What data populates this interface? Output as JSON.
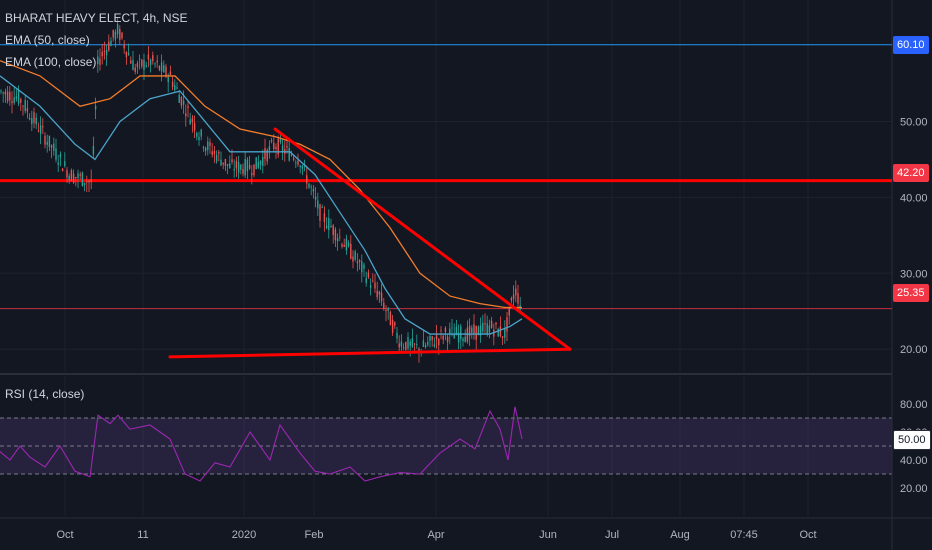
{
  "legend": {
    "title": "BHARAT HEAVY ELECT, 4h, NSE",
    "ema1": "EMA (50, close)",
    "ema2": "EMA (100, close)",
    "rsi": "RSI (14, close)"
  },
  "price_tags": {
    "resistance_top": "60.10",
    "resistance_mid": "42.20",
    "last": "25.35",
    "rsi_mid": "50.00"
  },
  "colors": {
    "background": "#131722",
    "grid": "#1e222d",
    "red_line": "#ff0000",
    "ema50": "#4aa3c9",
    "ema100": "#f57c2a",
    "blue_tag": "#2962ff",
    "red_tag": "#f23645",
    "rsi_line": "#9c27b0",
    "rsi_band": "#7e57c2"
  },
  "chart_data": {
    "type": "candlestick",
    "symbol": "BHARAT HEAVY ELECT",
    "interval": "4h",
    "exchange": "NSE",
    "x_ticks": [
      "Oct",
      "11",
      "2020",
      "Feb",
      "Apr",
      "Jun",
      "Jul",
      "Aug",
      "07:45",
      "Oct"
    ],
    "y_ticks": [
      "50.00",
      "40.00",
      "30.00",
      "20.00"
    ],
    "y_range": [
      17,
      66
    ],
    "horizontal_levels": [
      60.1,
      42.2
    ],
    "last_price": 25.35,
    "price_path": [
      [
        0,
        54
      ],
      [
        20,
        53
      ],
      [
        45,
        48
      ],
      [
        70,
        43
      ],
      [
        92,
        42
      ],
      [
        98,
        58
      ],
      [
        118,
        62
      ],
      [
        135,
        57
      ],
      [
        150,
        58
      ],
      [
        170,
        56
      ],
      [
        185,
        52
      ],
      [
        205,
        47
      ],
      [
        230,
        44
      ],
      [
        255,
        44
      ],
      [
        275,
        47
      ],
      [
        300,
        45
      ],
      [
        320,
        38
      ],
      [
        350,
        33
      ],
      [
        380,
        27
      ],
      [
        400,
        21
      ],
      [
        420,
        20
      ],
      [
        445,
        22
      ],
      [
        470,
        22
      ],
      [
        490,
        23
      ],
      [
        505,
        22
      ],
      [
        515,
        28
      ],
      [
        522,
        25.35
      ]
    ],
    "ema50_path": [
      [
        0,
        56
      ],
      [
        40,
        52
      ],
      [
        75,
        47
      ],
      [
        95,
        45
      ],
      [
        120,
        50
      ],
      [
        150,
        53
      ],
      [
        180,
        54
      ],
      [
        205,
        50
      ],
      [
        230,
        46
      ],
      [
        260,
        46
      ],
      [
        290,
        46
      ],
      [
        315,
        43
      ],
      [
        340,
        38
      ],
      [
        365,
        33
      ],
      [
        385,
        28
      ],
      [
        405,
        24
      ],
      [
        430,
        22
      ],
      [
        460,
        22
      ],
      [
        490,
        22
      ],
      [
        510,
        23
      ],
      [
        522,
        24
      ]
    ],
    "ema100_path": [
      [
        0,
        58
      ],
      [
        40,
        56
      ],
      [
        80,
        52
      ],
      [
        110,
        53
      ],
      [
        140,
        56
      ],
      [
        175,
        56
      ],
      [
        205,
        52
      ],
      [
        240,
        49
      ],
      [
        275,
        48
      ],
      [
        300,
        47
      ],
      [
        330,
        45
      ],
      [
        360,
        41
      ],
      [
        390,
        36
      ],
      [
        420,
        30
      ],
      [
        450,
        27
      ],
      [
        480,
        26
      ],
      [
        505,
        25.5
      ],
      [
        522,
        25.5
      ]
    ],
    "trendlines": [
      {
        "name": "descending",
        "from": [
          275,
          49
        ],
        "to": [
          570,
          20
        ]
      },
      {
        "name": "ascending-support",
        "from": [
          170,
          19
        ],
        "to": [
          570,
          20
        ]
      }
    ],
    "rsi": {
      "y_ticks": [
        "80.00",
        "60.00",
        "40.00",
        "20.00"
      ],
      "range": [
        0,
        100
      ],
      "upper_band": 70,
      "lower_band": 30,
      "middle": 50,
      "path": [
        [
          0,
          46
        ],
        [
          10,
          40
        ],
        [
          20,
          50
        ],
        [
          30,
          42
        ],
        [
          45,
          35
        ],
        [
          60,
          50
        ],
        [
          75,
          32
        ],
        [
          90,
          28
        ],
        [
          98,
          72
        ],
        [
          110,
          66
        ],
        [
          118,
          72
        ],
        [
          130,
          62
        ],
        [
          150,
          65
        ],
        [
          170,
          55
        ],
        [
          185,
          30
        ],
        [
          200,
          25
        ],
        [
          215,
          38
        ],
        [
          230,
          35
        ],
        [
          250,
          60
        ],
        [
          270,
          40
        ],
        [
          280,
          65
        ],
        [
          300,
          45
        ],
        [
          315,
          32
        ],
        [
          330,
          30
        ],
        [
          350,
          35
        ],
        [
          365,
          25
        ],
        [
          380,
          28
        ],
        [
          400,
          31
        ],
        [
          420,
          30
        ],
        [
          440,
          45
        ],
        [
          460,
          55
        ],
        [
          475,
          48
        ],
        [
          490,
          75
        ],
        [
          500,
          62
        ],
        [
          508,
          40
        ],
        [
          515,
          78
        ],
        [
          522,
          55
        ]
      ]
    }
  }
}
